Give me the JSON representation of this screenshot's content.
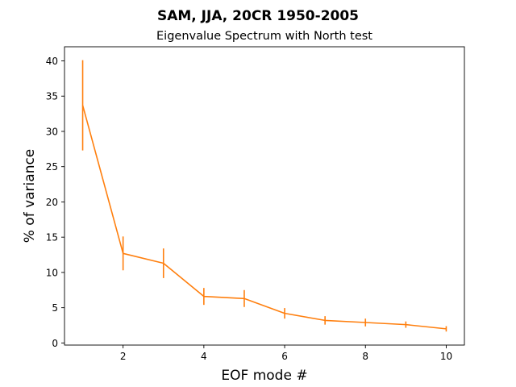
{
  "figure": {
    "suptitle": "SAM, JJA, 20CR 1950-2005"
  },
  "chart_data": {
    "type": "line",
    "title": "Eigenvalue Spectrum with North test",
    "xlabel": "EOF mode #",
    "ylabel": "% of variance",
    "xlim": [
      0.55,
      10.45
    ],
    "ylim": [
      -0.3,
      42
    ],
    "xticks": [
      2,
      4,
      6,
      8,
      10
    ],
    "yticks": [
      0,
      5,
      10,
      15,
      20,
      25,
      30,
      35,
      40
    ],
    "grid": false,
    "legend": "none",
    "series": [
      {
        "color": "#ff7f0e",
        "x": [
          1,
          2,
          3,
          4,
          5,
          6,
          7,
          8,
          9,
          10
        ],
        "y": [
          33.7,
          12.7,
          11.3,
          6.6,
          6.3,
          4.2,
          3.2,
          2.9,
          2.6,
          2.0
        ],
        "error": [
          6.4,
          2.4,
          2.1,
          1.2,
          1.2,
          0.75,
          0.6,
          0.55,
          0.45,
          0.38
        ]
      }
    ]
  }
}
